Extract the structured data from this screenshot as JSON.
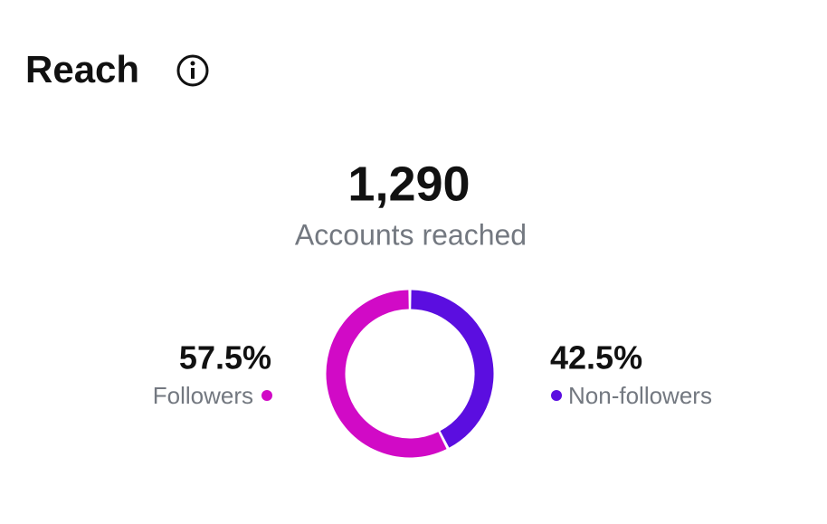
{
  "title": "Reach",
  "headline": "1,290",
  "headline_caption": "Accounts reached",
  "chart_data": {
    "type": "donut",
    "categories": [
      "Followers",
      "Non-followers"
    ],
    "values": [
      57.5,
      42.5
    ],
    "value_labels": [
      "57.5%",
      "42.5%"
    ],
    "colors": [
      "#d10ac6",
      "#5b0ee0"
    ]
  }
}
